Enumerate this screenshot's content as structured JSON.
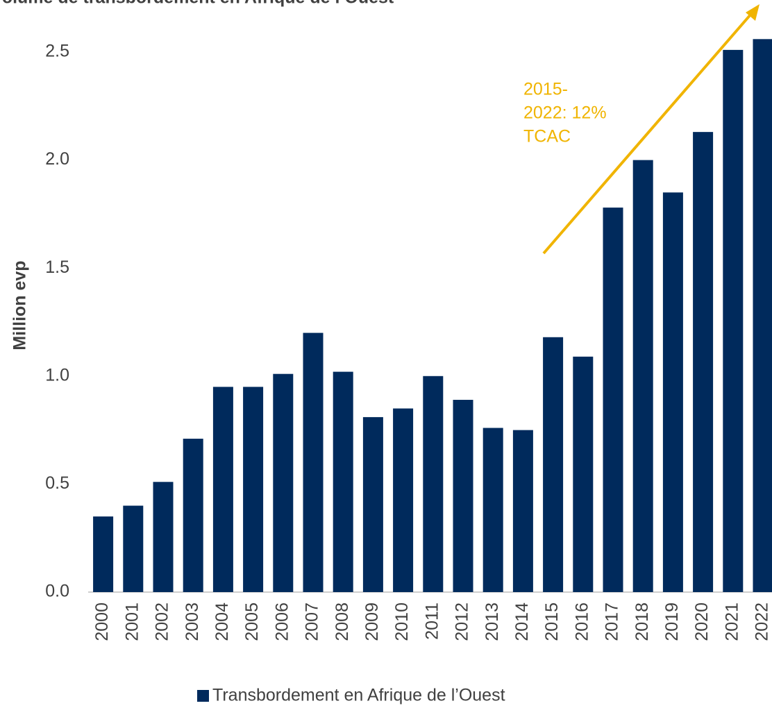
{
  "chart_data": {
    "type": "bar",
    "title": "Volume de transbordement en Afrique de l’Ouest",
    "y_label": "Million evp",
    "annotation": [
      "2015-",
      "2022: 12%",
      "TCAC"
    ],
    "annotation_color": "#f0b400",
    "categories": [
      "2000",
      "2001",
      "2002",
      "2003",
      "2004",
      "2005",
      "2006",
      "2007",
      "2008",
      "2009",
      "2010",
      "2011",
      "2012",
      "2013",
      "2014",
      "2015",
      "2016",
      "2017",
      "2018",
      "2019",
      "2020",
      "2021",
      "2022"
    ],
    "series": [
      {
        "name": "Transbordement en Afrique de l’Ouest",
        "color": "#002a5c",
        "values": [
          0.35,
          0.4,
          0.51,
          0.71,
          0.95,
          0.95,
          1.01,
          1.2,
          1.02,
          0.81,
          0.85,
          1.0,
          0.89,
          0.76,
          0.75,
          1.18,
          1.09,
          1.78,
          2.0,
          1.85,
          2.13,
          2.51,
          2.56
        ]
      }
    ],
    "ylim": [
      0,
      2.5
    ],
    "yticks": [
      {
        "value": 0,
        "label": "0.0"
      },
      {
        "value": 0.5,
        "label": "0.5"
      },
      {
        "value": 1,
        "label": "1.0"
      },
      {
        "value": 1.5,
        "label": "1.5"
      },
      {
        "value": 2,
        "label": "2.0"
      },
      {
        "value": 2.5,
        "label": "2.5"
      }
    ],
    "grid": false,
    "legend": "bottom"
  }
}
